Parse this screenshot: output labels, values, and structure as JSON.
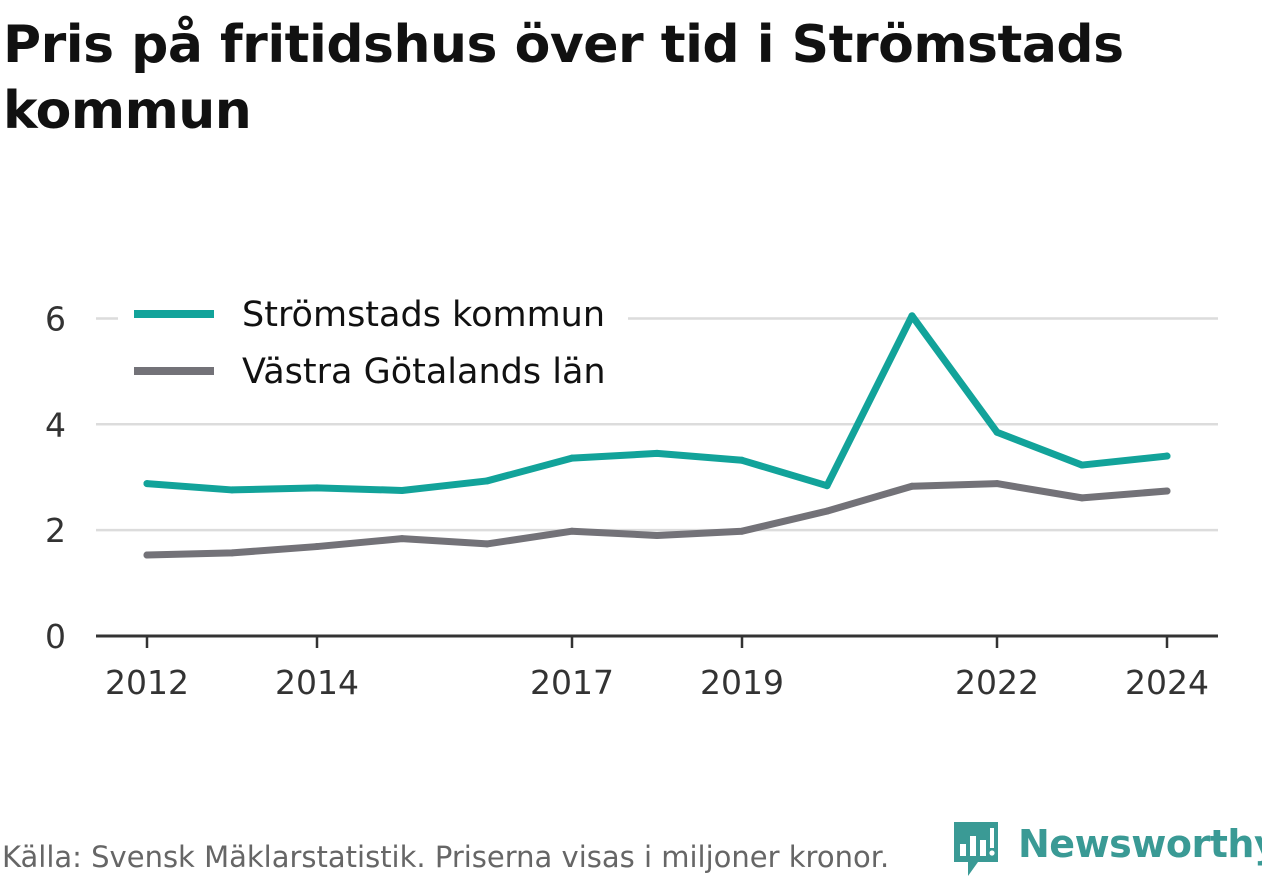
{
  "title": "Pris på fritidshus över tid i Strömstads kommun",
  "source": "Källa: Svensk Mäklarstatistik. Priserna visas i miljoner kronor.",
  "brand": {
    "name": "Newsworthy",
    "icon": "newsworthy-logo-icon",
    "color": "#3a9a95"
  },
  "chart_data": {
    "type": "line",
    "x": [
      2012,
      2013,
      2014,
      2015,
      2016,
      2017,
      2018,
      2019,
      2020,
      2021,
      2022,
      2023,
      2024
    ],
    "x_tick_labels": [
      "2012",
      "2014",
      "2017",
      "2019",
      "2022",
      "2024"
    ],
    "y_tick_labels": [
      "0",
      "2",
      "4",
      "6"
    ],
    "ylim": [
      0,
      6.5
    ],
    "xlim": [
      2011.4,
      2024.6
    ],
    "grid": true,
    "legend_position": "top-left",
    "series": [
      {
        "name": "Strömstads kommun",
        "color": "#12a39a",
        "values": [
          2.88,
          2.76,
          2.8,
          2.75,
          2.93,
          3.36,
          3.45,
          3.32,
          2.84,
          6.05,
          3.85,
          3.23,
          3.4
        ]
      },
      {
        "name": "Västra Götalands län",
        "color": "#737278",
        "values": [
          1.53,
          1.57,
          1.69,
          1.84,
          1.74,
          1.98,
          1.9,
          1.98,
          2.36,
          2.83,
          2.88,
          2.61,
          2.74
        ]
      }
    ]
  }
}
